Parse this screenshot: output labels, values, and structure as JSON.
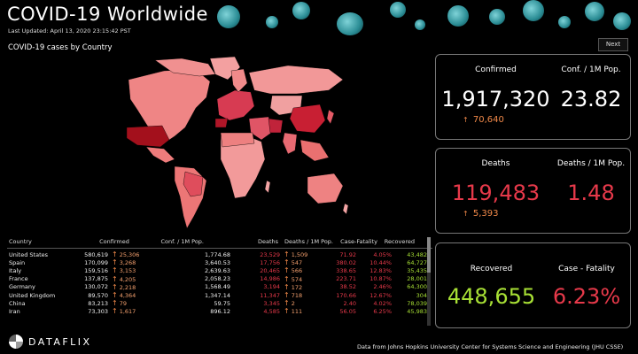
{
  "header": {
    "title": "COVID-19  Worldwide",
    "updated": "Last Updated: April 13, 2020 23:15:42 PST"
  },
  "nav": {
    "next_label": "Next"
  },
  "map": {
    "title": "COVID-19 cases by Country"
  },
  "table": {
    "headers": {
      "country": "Country",
      "confirmed": "Confirmed",
      "conf_pop": "Conf. / 1M Pop.",
      "deaths": "Deaths",
      "deaths_pop": "Deaths / 1M Pop.",
      "case_fatality": "Case-Fatality",
      "recovered": "Recovered"
    },
    "rows": [
      {
        "country": "United States",
        "confirmed": "580,619",
        "conf_delta": "25,306",
        "conf_pop": "1,774.68",
        "deaths": "23,529",
        "deaths_delta": "1,509",
        "deaths_pop": "71.92",
        "cf": "4.05%",
        "recovered": "43,482"
      },
      {
        "country": "Spain",
        "confirmed": "170,099",
        "conf_delta": "3,268",
        "conf_pop": "3,640.53",
        "deaths": "17,756",
        "deaths_delta": "547",
        "deaths_pop": "380.02",
        "cf": "10.44%",
        "recovered": "64,727"
      },
      {
        "country": "Italy",
        "confirmed": "159,516",
        "conf_delta": "3,153",
        "conf_pop": "2,639.63",
        "deaths": "20,465",
        "deaths_delta": "566",
        "deaths_pop": "338.65",
        "cf": "12.83%",
        "recovered": "35,435"
      },
      {
        "country": "France",
        "confirmed": "137,875",
        "conf_delta": "4,205",
        "conf_pop": "2,058.23",
        "deaths": "14,986",
        "deaths_delta": "574",
        "deaths_pop": "223.71",
        "cf": "10.87%",
        "recovered": "28,001"
      },
      {
        "country": "Germany",
        "confirmed": "130,072",
        "conf_delta": "2,218",
        "conf_pop": "1,568.49",
        "deaths": "3,194",
        "deaths_delta": "172",
        "deaths_pop": "38.52",
        "cf": "2.46%",
        "recovered": "64,300"
      },
      {
        "country": "United Kingdom",
        "confirmed": "89,570",
        "conf_delta": "4,364",
        "conf_pop": "1,347.14",
        "deaths": "11,347",
        "deaths_delta": "718",
        "deaths_pop": "170.66",
        "cf": "12.67%",
        "recovered": "304"
      },
      {
        "country": "China",
        "confirmed": "83,213",
        "conf_delta": "79",
        "conf_pop": "59.75",
        "deaths": "3,345",
        "deaths_delta": "2",
        "deaths_pop": "2.40",
        "cf": "4.02%",
        "recovered": "78,039"
      },
      {
        "country": "Iran",
        "confirmed": "73,303",
        "conf_delta": "1,617",
        "conf_pop": "896.12",
        "deaths": "4,585",
        "deaths_delta": "111",
        "deaths_pop": "56.05",
        "cf": "6.25%",
        "recovered": "45,983"
      }
    ]
  },
  "cards": {
    "confirmed": {
      "label": "Confirmed",
      "value": "1,917,320",
      "delta": "70,640",
      "per_label": "Conf. / 1M Pop.",
      "per_value": "23.82"
    },
    "deaths": {
      "label": "Deaths",
      "value": "119,483",
      "delta": "5,393",
      "per_label": "Deaths / 1M Pop.",
      "per_value": "1.48"
    },
    "recovered": {
      "label": "Recovered",
      "value": "448,655",
      "cf_label": "Case - Fatality",
      "cf_value": "6.23%"
    }
  },
  "footer": {
    "logo": "DATAFLIX",
    "source": "Data from Johns Hopkins University Center for Systems Science and Engineering (JHU CSSE)"
  },
  "colors": {
    "deaths_red": "#e6394a",
    "recovered_green": "#a8e035",
    "delta_orange": "#f28a4a",
    "map_light": "#f08a8a",
    "map_dark": "#a3101c"
  }
}
